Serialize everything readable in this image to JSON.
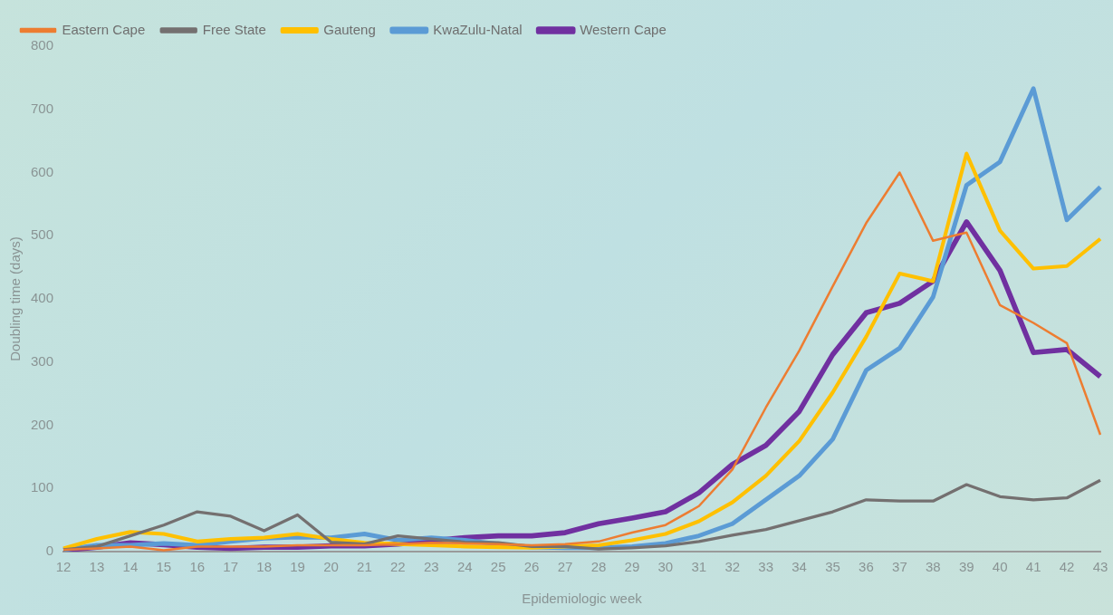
{
  "chart_data": {
    "type": "line",
    "xlabel": "Epidemiologic week",
    "ylabel": "Doubling time (days)",
    "categories": [
      "12",
      "13",
      "14",
      "15",
      "16",
      "17",
      "18",
      "19",
      "20",
      "21",
      "22",
      "23",
      "24",
      "25",
      "26",
      "27",
      "28",
      "29",
      "30",
      "31",
      "32",
      "33",
      "34",
      "35",
      "36",
      "37",
      "38",
      "39",
      "40",
      "41",
      "42",
      "43"
    ],
    "series": [
      {
        "name": "Eastern Cape",
        "color": "#ed7d31",
        "values": [
          3,
          5,
          8,
          2,
          8,
          8,
          8,
          10,
          10,
          10,
          12,
          14,
          13,
          12,
          10,
          12,
          16,
          30,
          42,
          72,
          130,
          228,
          318,
          420,
          520,
          600,
          492,
          505,
          390,
          362,
          330,
          185
        ]
      },
      {
        "name": "Free State",
        "color": "#747070",
        "values": [
          3,
          8,
          25,
          42,
          63,
          56,
          33,
          58,
          15,
          12,
          25,
          20,
          15,
          14,
          8,
          8,
          4,
          6,
          9,
          16,
          26,
          35,
          49,
          63,
          82,
          80,
          80,
          106,
          87,
          82,
          85,
          113
        ]
      },
      {
        "name": "Gauteng",
        "color": "#ffc000",
        "values": [
          5,
          20,
          31,
          28,
          16,
          20,
          22,
          28,
          20,
          14,
          12,
          10,
          8,
          7,
          6,
          8,
          10,
          18,
          28,
          48,
          78,
          120,
          175,
          252,
          340,
          440,
          428,
          630,
          508,
          448,
          452,
          495
        ]
      },
      {
        "name": "KwaZulu-Natal",
        "color": "#5b9bd5",
        "values": [
          3,
          10,
          10,
          13,
          10,
          16,
          21,
          23,
          22,
          28,
          18,
          22,
          18,
          12,
          7,
          6,
          6,
          8,
          13,
          25,
          44,
          82,
          120,
          178,
          287,
          322,
          403,
          580,
          617,
          733,
          525,
          577
        ]
      },
      {
        "name": "Western Cape",
        "color": "#7030a0",
        "values": [
          2,
          7,
          14,
          11,
          7,
          5,
          7,
          7,
          9,
          9,
          12,
          17,
          22,
          25,
          25,
          30,
          44,
          53,
          63,
          93,
          138,
          168,
          222,
          312,
          378,
          393,
          428,
          522,
          445,
          315,
          320,
          277
        ]
      }
    ],
    "ylim": [
      0,
      800
    ],
    "yticks": [
      0,
      100,
      200,
      300,
      400,
      500,
      600,
      700,
      800
    ],
    "grid": false,
    "legend": "top left",
    "marker": "none",
    "line_style": "solid"
  }
}
